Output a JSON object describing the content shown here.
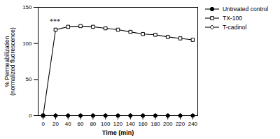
{
  "chart_data": {
    "type": "line",
    "xlabel": "Time (min)",
    "ylabel": "% Permeabilization\n(normalized fluorescence)",
    "x": [
      0,
      20,
      40,
      60,
      80,
      100,
      120,
      140,
      160,
      180,
      200,
      220,
      240
    ],
    "series": [
      {
        "name": "Untreated control",
        "color": "#000000",
        "marker": "circle",
        "values": [
          0,
          0,
          0,
          0,
          0,
          0,
          0,
          0,
          0,
          0,
          0,
          0,
          0
        ]
      },
      {
        "name": "TX-100",
        "color": "#000000",
        "marker": "square-open",
        "values": [
          0,
          119,
          123,
          124,
          123,
          121,
          119,
          116,
          113,
          112,
          109,
          107,
          105
        ]
      },
      {
        "name": "T-cadinol",
        "color": "#000000",
        "marker": "diamond-open",
        "values": [
          0,
          0,
          0,
          0,
          0,
          0,
          0,
          0,
          0,
          0,
          0,
          0,
          0
        ]
      }
    ],
    "xlim": [
      -8,
      248
    ],
    "xticks": [
      0,
      20,
      40,
      60,
      80,
      100,
      120,
      140,
      160,
      180,
      200,
      220,
      240
    ],
    "ylim": [
      0,
      150
    ],
    "yticks": [
      0,
      50,
      100,
      150
    ],
    "annotations": [
      {
        "text": "***",
        "x": 19,
        "y": 127
      }
    ],
    "legend": "upper right"
  }
}
